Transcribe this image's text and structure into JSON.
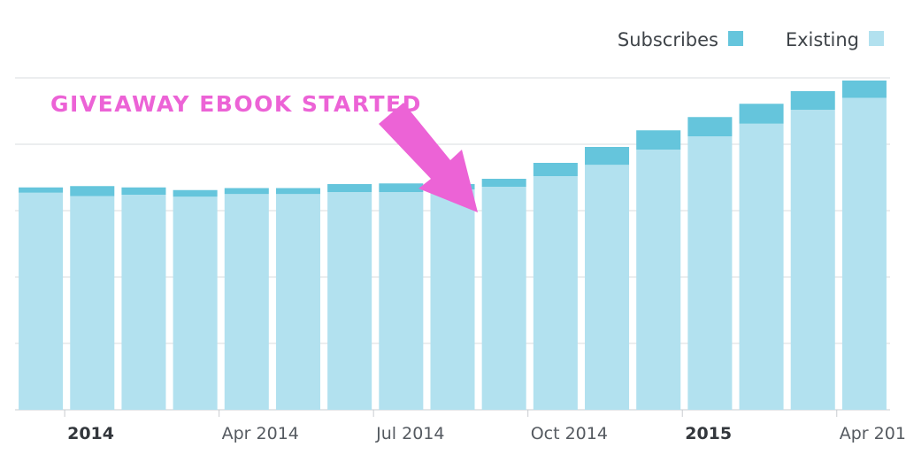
{
  "chart_data": {
    "type": "bar",
    "stacked": true,
    "grid": true,
    "legend_placement": "top-right",
    "colors": {
      "subscribes": "#65c5dc",
      "existing": "#b2e1ef",
      "annotation": "#ec63d6",
      "grid": "#d9dcdf"
    },
    "categories": [
      "2014-01",
      "2014-02",
      "2014-03",
      "2014-04",
      "2014-05",
      "2014-06",
      "2014-07",
      "2014-08",
      "2014-09",
      "2014-10",
      "2014-11",
      "2014-12",
      "2015-01",
      "2015-02",
      "2015-03",
      "2015-04",
      "2015-05"
    ],
    "ylim": [
      0,
      5
    ],
    "series": [
      {
        "name": "Existing",
        "values": [
          3.27,
          3.22,
          3.24,
          3.21,
          3.25,
          3.25,
          3.28,
          3.28,
          3.32,
          3.36,
          3.52,
          3.69,
          3.92,
          4.12,
          4.31,
          4.52,
          4.7
        ]
      },
      {
        "name": "Subscribes",
        "values": [
          0.08,
          0.15,
          0.11,
          0.1,
          0.09,
          0.09,
          0.12,
          0.13,
          0.08,
          0.12,
          0.2,
          0.27,
          0.29,
          0.29,
          0.3,
          0.28,
          0.26
        ]
      }
    ],
    "x_tick_labels": [
      {
        "label": "2014",
        "index": 0,
        "bold": true
      },
      {
        "label": "Apr 2014",
        "index": 3,
        "bold": false
      },
      {
        "label": "Jul 2014",
        "index": 6,
        "bold": false
      },
      {
        "label": "Oct 2014",
        "index": 9,
        "bold": false
      },
      {
        "label": "2015",
        "index": 12,
        "bold": true
      },
      {
        "label": "Apr 2015",
        "index": 15,
        "bold": false
      }
    ],
    "annotation": {
      "text": "GIVEAWAY EBOOK STARTED",
      "points_to_index": 10
    }
  },
  "legend": {
    "subscribes_label": "Subscribes",
    "existing_label": "Existing"
  }
}
